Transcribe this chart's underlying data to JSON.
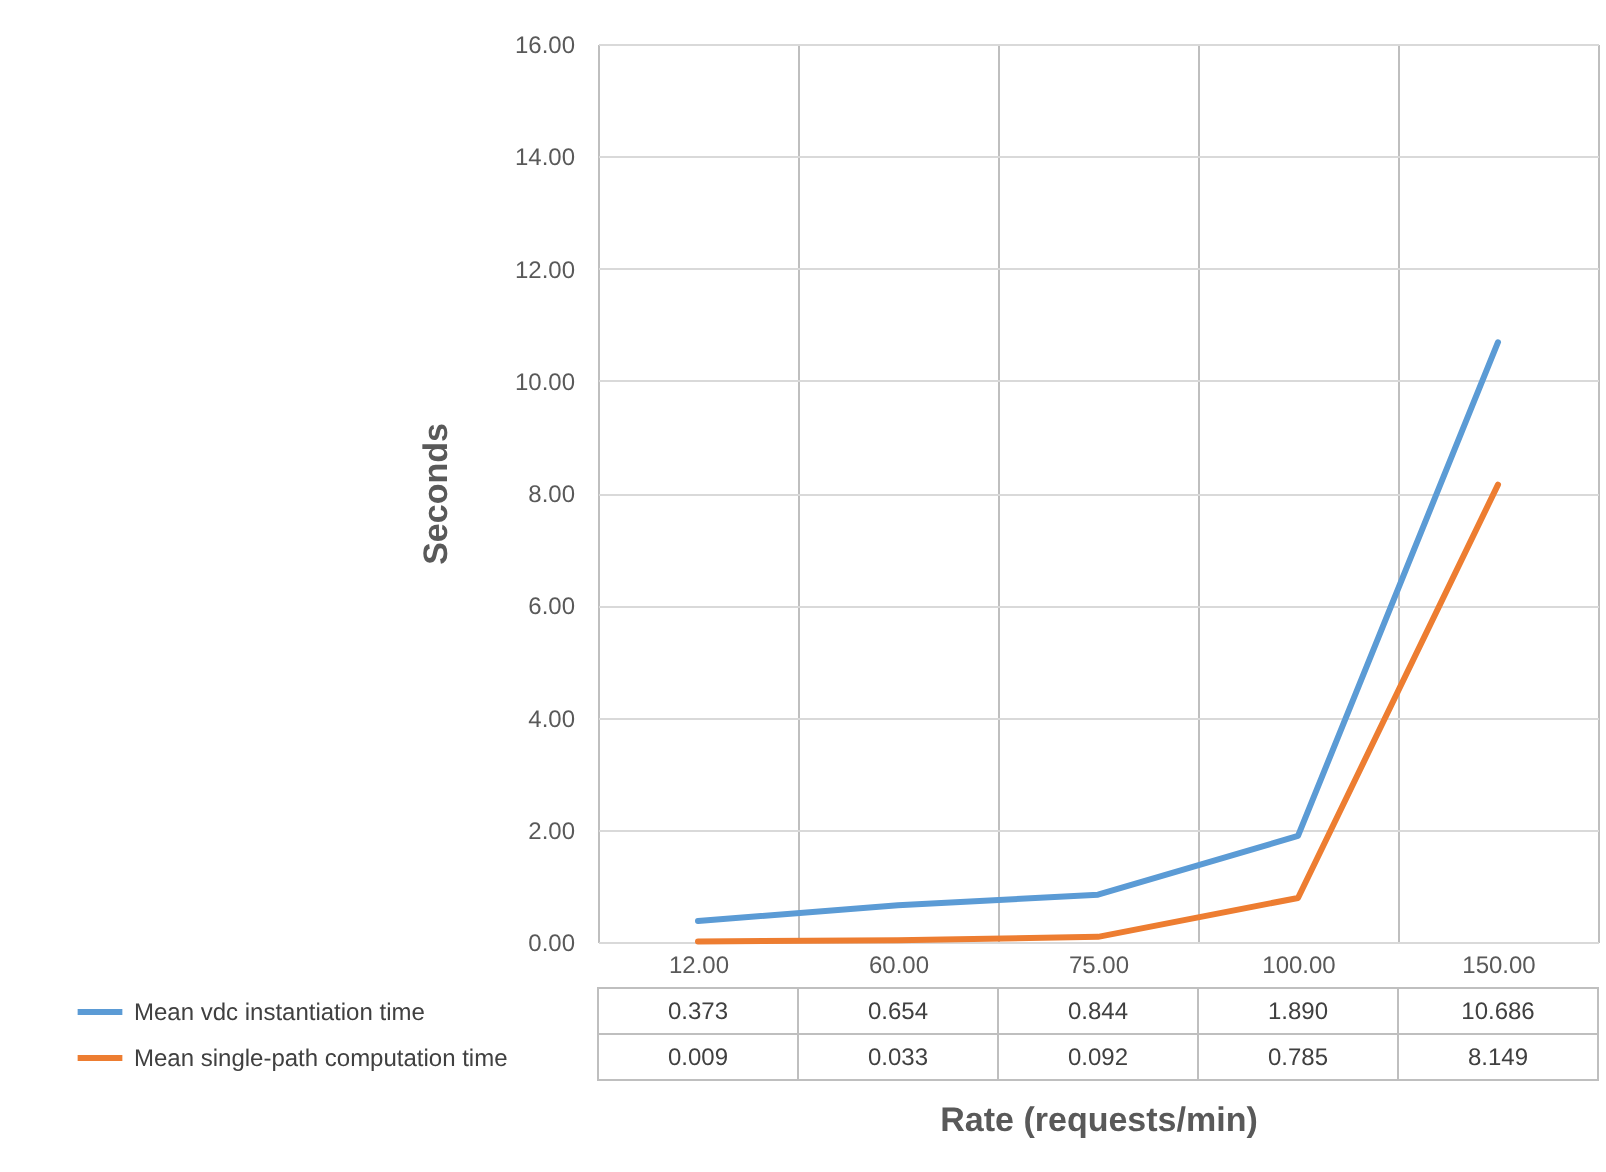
{
  "chart_data": {
    "type": "line",
    "xlabel": "Rate (requests/min)",
    "ylabel": "Seconds",
    "categories": [
      "12.00",
      "60.00",
      "75.00",
      "100.00",
      "150.00"
    ],
    "series": [
      {
        "name": "Mean vdc instantiation time",
        "color": "#5b9bd5",
        "values": [
          0.373,
          0.654,
          0.844,
          1.89,
          10.686
        ],
        "value_labels": [
          "0.373",
          "0.654",
          "0.844",
          "1.890",
          "10.686"
        ]
      },
      {
        "name": "Mean single-path computation time",
        "color": "#ed7d31",
        "values": [
          0.009,
          0.033,
          0.092,
          0.785,
          8.149
        ],
        "value_labels": [
          "0.009",
          "0.033",
          "0.092",
          "0.785",
          "8.149"
        ]
      }
    ],
    "ylim": [
      0,
      16
    ],
    "yticks": [
      {
        "value": 0,
        "label": "0.00"
      },
      {
        "value": 2,
        "label": "2.00"
      },
      {
        "value": 4,
        "label": "4.00"
      },
      {
        "value": 6,
        "label": "6.00"
      },
      {
        "value": 8,
        "label": "8.00"
      },
      {
        "value": 10,
        "label": "10.00"
      },
      {
        "value": 12,
        "label": "12.00"
      },
      {
        "value": 14,
        "label": "14.00"
      },
      {
        "value": 16,
        "label": "16.00"
      }
    ],
    "grid": "y",
    "legend": "bottom left",
    "marker": "none",
    "line_style": "solid"
  }
}
